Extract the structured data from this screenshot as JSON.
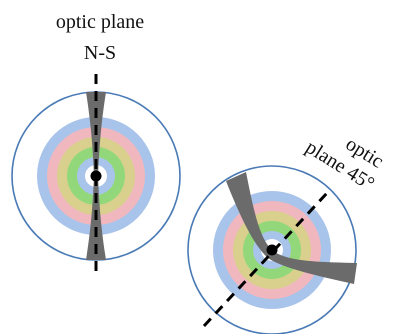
{
  "diagrams": [
    {
      "id": "ns",
      "label_lines": [
        "optic plane",
        "N-S"
      ],
      "line_angle_deg": 90,
      "ring_colors": [
        "#a9c4ea",
        "#f0b7bf",
        "#d9d08d",
        "#92d87a",
        "#a9c4ea",
        "#ffffff"
      ],
      "outline_color": "#4a7ab5",
      "brush_color": "#6b6b6b",
      "axis_color": "#000000"
    },
    {
      "id": "deg45",
      "label_lines": [
        "optic",
        "plane 45°"
      ],
      "line_angle_deg": 45,
      "ring_colors": [
        "#a9c4ea",
        "#f0b7bf",
        "#d9d08d",
        "#92d87a",
        "#a9c4ea",
        "#ffffff"
      ],
      "outline_color": "#4a7ab5",
      "brush_color": "#6b6b6b",
      "axis_color": "#000000"
    }
  ]
}
